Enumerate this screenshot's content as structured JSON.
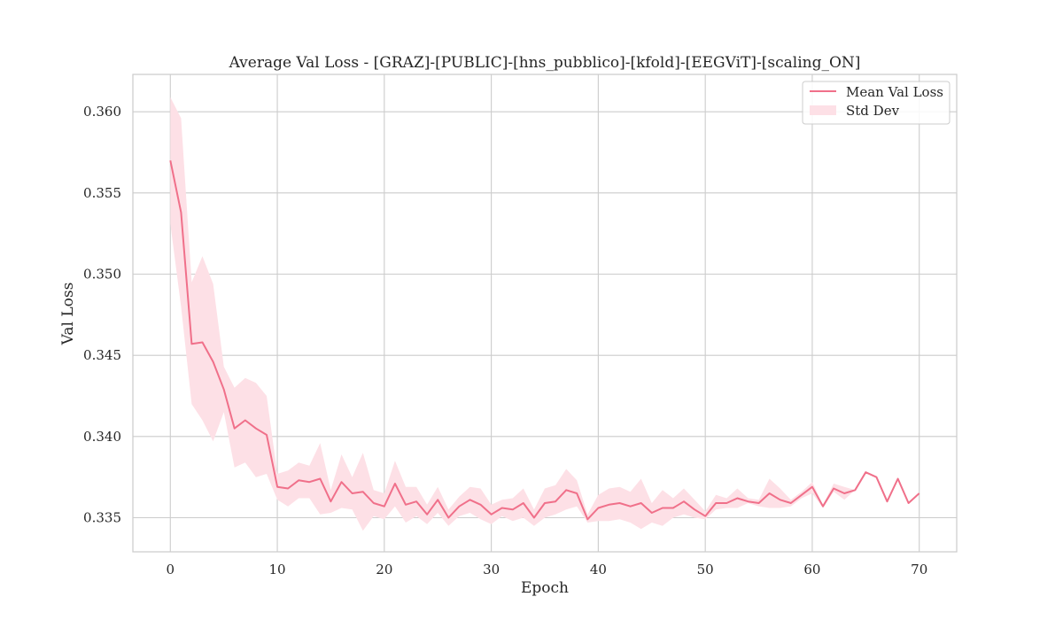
{
  "chart_data": {
    "type": "line",
    "title": "Average Val Loss - [GRAZ]-[PUBLIC]-[hns_pubblico]-[kfold]-[EEGViT]-[scaling_ON]",
    "xlabel": "Epoch",
    "ylabel": "Val Loss",
    "xlim": [
      -3.5,
      73.5
    ],
    "ylim": [
      0.3329,
      0.3623
    ],
    "x_ticks": [
      0,
      10,
      20,
      30,
      40,
      50,
      60,
      70
    ],
    "y_ticks": [
      0.335,
      0.34,
      0.345,
      0.35,
      0.355,
      0.36
    ],
    "x_tick_labels": [
      "0",
      "10",
      "20",
      "30",
      "40",
      "50",
      "60",
      "70"
    ],
    "y_tick_labels": [
      "0.335",
      "0.340",
      "0.345",
      "0.350",
      "0.355",
      "0.360"
    ],
    "grid": true,
    "legend_position": "top-right",
    "line_color": "#f0708a",
    "band_color": "#fde0e6",
    "series": [
      {
        "name": "Mean Val Loss",
        "x": [
          0,
          1,
          2,
          3,
          4,
          5,
          6,
          7,
          8,
          9,
          10,
          11,
          12,
          13,
          14,
          15,
          16,
          17,
          18,
          19,
          20,
          21,
          22,
          23,
          24,
          25,
          26,
          27,
          28,
          29,
          30,
          31,
          32,
          33,
          34,
          35,
          36,
          37,
          38,
          39,
          40,
          41,
          42,
          43,
          44,
          45,
          46,
          47,
          48,
          49,
          50,
          51,
          52,
          53,
          54,
          55,
          56,
          57,
          58,
          59,
          60,
          61,
          62,
          63,
          64,
          65,
          66,
          67,
          68,
          69,
          70
        ],
        "values": [
          0.357,
          0.3538,
          0.3457,
          0.3458,
          0.3446,
          0.3429,
          0.3405,
          0.341,
          0.3405,
          0.3401,
          0.3369,
          0.3368,
          0.3373,
          0.3372,
          0.3374,
          0.336,
          0.3372,
          0.3365,
          0.3366,
          0.3359,
          0.3357,
          0.3371,
          0.3358,
          0.336,
          0.3352,
          0.3361,
          0.335,
          0.3357,
          0.3361,
          0.3358,
          0.3352,
          0.3356,
          0.3355,
          0.3359,
          0.335,
          0.3359,
          0.336,
          0.3367,
          0.3365,
          0.3349,
          0.3356,
          0.3358,
          0.3359,
          0.3357,
          0.3359,
          0.3353,
          0.3356,
          0.3356,
          0.336,
          0.3355,
          0.3351,
          0.3359,
          0.3359,
          0.3362,
          0.336,
          0.3359,
          0.3365,
          0.3361,
          0.3359,
          0.3364,
          0.3369,
          0.3357,
          0.3368,
          0.3365,
          0.3367,
          0.3378,
          0.3375,
          0.336,
          0.3374,
          0.3359,
          0.3365
        ]
      },
      {
        "name": "Std Dev",
        "type": "band",
        "lower": [
          0.3531,
          0.348,
          0.342,
          0.341,
          0.3397,
          0.3415,
          0.3381,
          0.3384,
          0.3375,
          0.3377,
          0.3361,
          0.3357,
          0.3362,
          0.3362,
          0.3352,
          0.3353,
          0.3356,
          0.3355,
          0.3342,
          0.3351,
          0.3349,
          0.3357,
          0.3347,
          0.3351,
          0.3346,
          0.3353,
          0.3345,
          0.3351,
          0.3353,
          0.3349,
          0.3346,
          0.3351,
          0.3348,
          0.335,
          0.3345,
          0.335,
          0.3352,
          0.3355,
          0.3357,
          0.3347,
          0.3348,
          0.3348,
          0.3349,
          0.3347,
          0.3343,
          0.3347,
          0.3345,
          0.335,
          0.3352,
          0.335,
          0.3349,
          0.3355,
          0.3356,
          0.3356,
          0.3359,
          0.3357,
          0.3356,
          0.3356,
          0.3357,
          0.3362,
          0.3365,
          0.3356,
          0.3366,
          0.3361,
          0.3367,
          0.3378,
          0.3375,
          0.336,
          0.3374,
          0.3359,
          0.3365
        ],
        "upper": [
          0.3609,
          0.3596,
          0.3495,
          0.3511,
          0.3494,
          0.3443,
          0.343,
          0.3436,
          0.3433,
          0.3425,
          0.3377,
          0.3379,
          0.3384,
          0.3382,
          0.3396,
          0.3367,
          0.3389,
          0.3375,
          0.339,
          0.3367,
          0.3365,
          0.3385,
          0.3369,
          0.3369,
          0.3358,
          0.3369,
          0.3355,
          0.3363,
          0.3369,
          0.3368,
          0.3358,
          0.3361,
          0.3362,
          0.3368,
          0.3355,
          0.3368,
          0.337,
          0.338,
          0.3373,
          0.3352,
          0.3364,
          0.3368,
          0.3369,
          0.3366,
          0.3374,
          0.3359,
          0.3367,
          0.3362,
          0.3368,
          0.3361,
          0.3354,
          0.3364,
          0.3362,
          0.3368,
          0.3362,
          0.3361,
          0.3374,
          0.3368,
          0.3361,
          0.3366,
          0.3372,
          0.3358,
          0.3371,
          0.3369,
          0.3367,
          0.3378,
          0.3375,
          0.336,
          0.3374,
          0.3359,
          0.3365
        ]
      }
    ]
  }
}
